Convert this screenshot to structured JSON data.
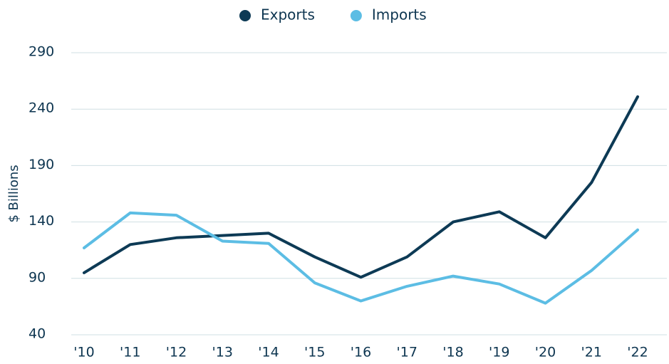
{
  "chart_data": {
    "type": "line",
    "y_label": "$ Billions",
    "categories": [
      "'10",
      "'11",
      "'12",
      "'13",
      "'14",
      "'15",
      "'16",
      "'17",
      "'18",
      "'19",
      "'20",
      "'21",
      "'22"
    ],
    "series": [
      {
        "name": "Exports",
        "color": "#0d3a55",
        "values": [
          95,
          120,
          126,
          128,
          130,
          109,
          91,
          109,
          140,
          149,
          126,
          175,
          251
        ]
      },
      {
        "name": "Imports",
        "color": "#5cbde4",
        "values": [
          117,
          148,
          146,
          123,
          121,
          86,
          70,
          83,
          92,
          85,
          68,
          97,
          133
        ]
      }
    ],
    "ylim": [
      40,
      290
    ],
    "yticks": [
      40,
      90,
      140,
      190,
      240,
      290
    ],
    "grid": true,
    "legend": "top"
  }
}
